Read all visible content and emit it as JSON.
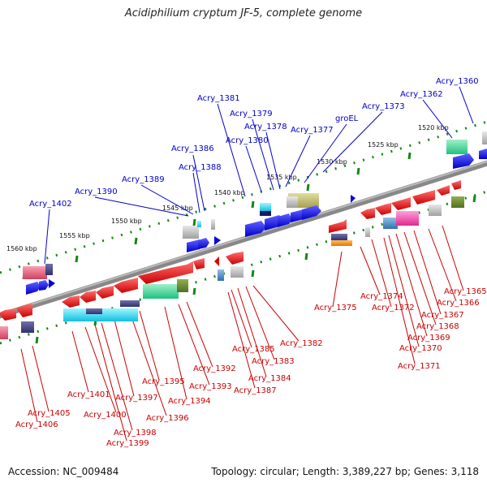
{
  "title": "Acidiphilium cryptum JF-5, complete genome",
  "footer": {
    "accession": "Accession: NC_009484",
    "summary": "Topology: circular; Length: 3,389,227 bp; Genes: 3,118"
  },
  "scale_labels": [
    "1520 kbp",
    "1525 kbp",
    "1530 kbp",
    "1535 kbp",
    "1540 kbp",
    "1545 kbp",
    "1550 kbp",
    "1555 kbp",
    "1560 kbp"
  ],
  "forward_gene_labels": [
    "Acry_1360",
    "Acry_1362",
    "Acry_1373",
    "groEL",
    "Acry_1377",
    "Acry_1378",
    "Acry_1379",
    "Acry_1380",
    "Acry_1381",
    "Acry_1386",
    "Acry_1388",
    "Acry_1389",
    "Acry_1390",
    "Acry_1402"
  ],
  "reverse_gene_labels": [
    "Acry_1365",
    "Acry_1366",
    "Acry_1367",
    "Acry_1368",
    "Acry_1369",
    "Acry_1370",
    "Acry_1371",
    "Acry_1372",
    "Acry_1374",
    "Acry_1375",
    "Acry_1382",
    "Acry_1383",
    "Acry_1384",
    "Acry_1385",
    "Acry_1387",
    "Acry_1392",
    "Acry_1393",
    "Acry_1394",
    "Acry_1395",
    "Acry_1396",
    "Acry_1397",
    "Acry_1398",
    "Acry_1399",
    "Acry_1400",
    "Acry_1401",
    "Acry_1405",
    "Acry_1406"
  ],
  "colors": {
    "forward": "#0000dd",
    "reverse": "#dd0000",
    "backbone": "#777777",
    "tick": "#118811",
    "forward_label": "#0000cc",
    "reverse_label": "#cc0000"
  }
}
